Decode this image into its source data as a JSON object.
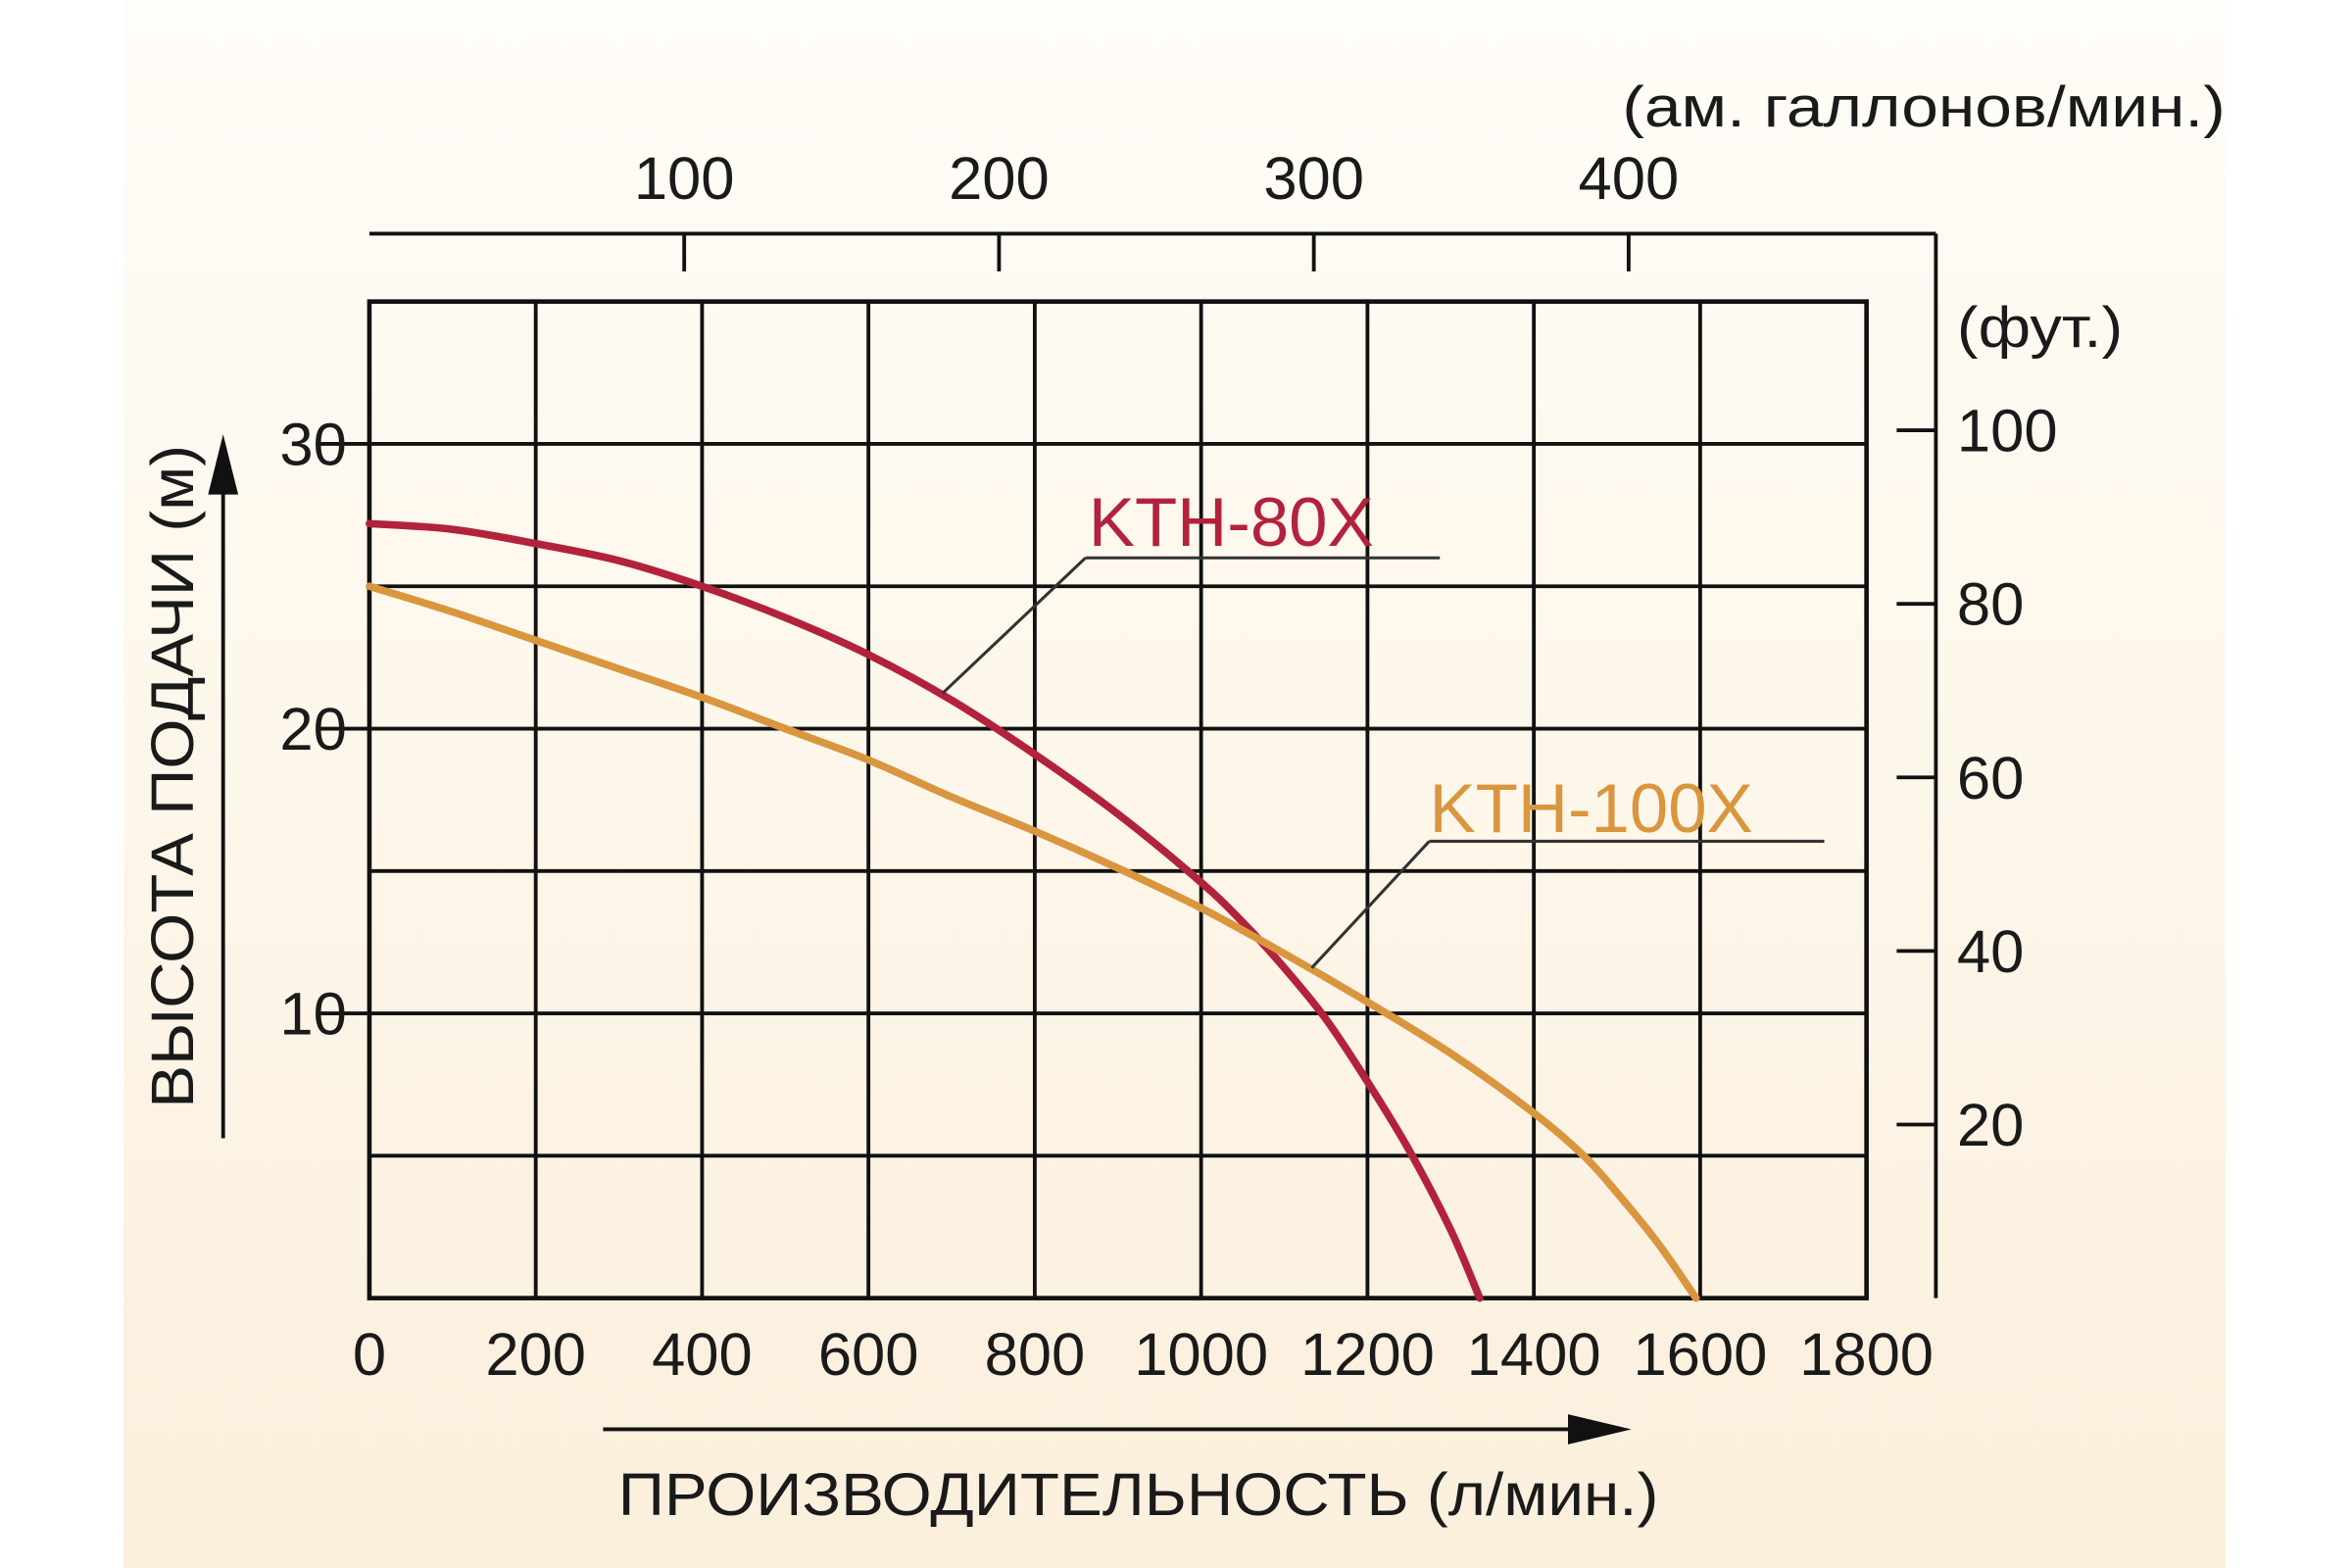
{
  "chart_data": {
    "type": "line",
    "title": "",
    "xlabel": "ПРОИЗВОДИТЕЛЬНОСТЬ (л/мин.)",
    "ylabel": "ВЫСОТА ПОДАЧИ (м)",
    "xlim": [
      0,
      1800
    ],
    "ylim": [
      0,
      35
    ],
    "x_ticks": [
      0,
      200,
      400,
      600,
      800,
      1000,
      1200,
      1400,
      1600,
      1800
    ],
    "y_ticks": [
      10,
      20,
      30
    ],
    "y_grid_step": 5,
    "grid": true,
    "secondary_x_axis": {
      "label": "(ам. галлонов/мин.)",
      "ticks": [
        100,
        200,
        300,
        400
      ],
      "factor_liters_per_unit": 3.785
    },
    "secondary_y_axis": {
      "label": "(фут.)",
      "ticks": [
        20,
        40,
        60,
        80,
        100
      ],
      "factor_meters_per_unit": 0.3048
    },
    "series": [
      {
        "name": "KTH-80X",
        "color": "#b3223c",
        "x": [
          0,
          100,
          200,
          300,
          400,
          500,
          600,
          700,
          800,
          900,
          1000,
          1050,
          1100,
          1150,
          1200,
          1250,
          1300,
          1335
        ],
        "y": [
          27.2,
          27.0,
          26.5,
          25.9,
          25.0,
          23.9,
          22.6,
          21.0,
          19.1,
          17.0,
          14.6,
          13.2,
          11.6,
          9.8,
          7.6,
          5.2,
          2.4,
          0
        ]
      },
      {
        "name": "KTH-100X",
        "color": "#d9963f",
        "x": [
          0,
          100,
          200,
          300,
          400,
          500,
          600,
          700,
          800,
          900,
          1000,
          1100,
          1200,
          1300,
          1400,
          1460,
          1500,
          1550,
          1595
        ],
        "y": [
          25.0,
          24.1,
          23.1,
          22.1,
          21.1,
          20.0,
          18.9,
          17.6,
          16.4,
          15.1,
          13.7,
          12.1,
          10.4,
          8.6,
          6.5,
          5.0,
          3.7,
          1.9,
          0
        ]
      }
    ]
  }
}
